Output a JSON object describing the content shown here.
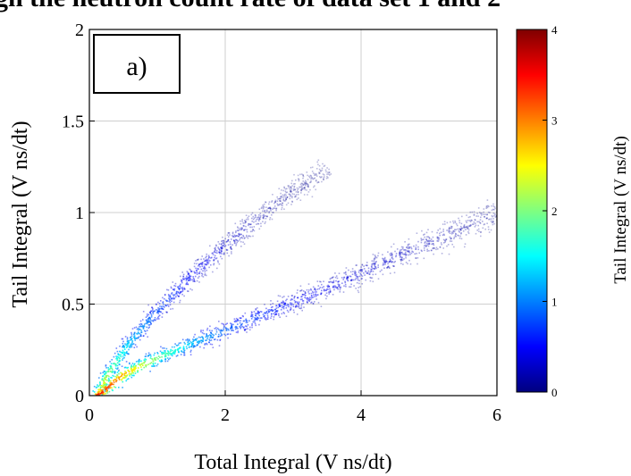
{
  "page_title": "gh the neutron count rate of data set 1 and 2",
  "chart_data": {
    "type": "heatmap",
    "panel_label": "a)",
    "xlabel": "Total Integral (V ns/dt)",
    "ylabel": "Tail Integral (V ns/dt)",
    "xlim": [
      0,
      6
    ],
    "ylim": [
      0,
      2
    ],
    "x_ticks": [
      "0",
      "2",
      "4",
      "6"
    ],
    "y_ticks": [
      "0",
      "0.5",
      "1",
      "1.5",
      "2"
    ],
    "grid": true,
    "colorscale": "jet",
    "colorbar": {
      "min": 0,
      "max": 4,
      "ticks": [
        "0",
        "1",
        "2",
        "3",
        "4"
      ]
    },
    "bands": [
      {
        "x": [
          0.1,
          0.3,
          0.6,
          1.0,
          1.5,
          2.0,
          2.5,
          3.0,
          3.5
        ],
        "y": [
          0.0,
          0.14,
          0.3,
          0.47,
          0.66,
          0.82,
          0.98,
          1.12,
          1.25
        ],
        "intensity": [
          2.8,
          2.0,
          1.3,
          0.8,
          0.55,
          0.35,
          0.18,
          0.08,
          0.03
        ]
      },
      {
        "x": [
          0.1,
          0.5,
          1.0,
          1.5,
          2.0,
          2.5,
          3.0,
          3.5,
          4.0,
          4.5,
          5.0,
          5.5,
          6.0
        ],
        "y": [
          0.0,
          0.12,
          0.21,
          0.29,
          0.36,
          0.44,
          0.51,
          0.59,
          0.67,
          0.76,
          0.84,
          0.92,
          1.0
        ],
        "intensity": [
          3.5,
          2.8,
          2.0,
          1.3,
          0.9,
          0.7,
          0.55,
          0.45,
          0.35,
          0.3,
          0.22,
          0.15,
          0.08
        ]
      }
    ]
  }
}
